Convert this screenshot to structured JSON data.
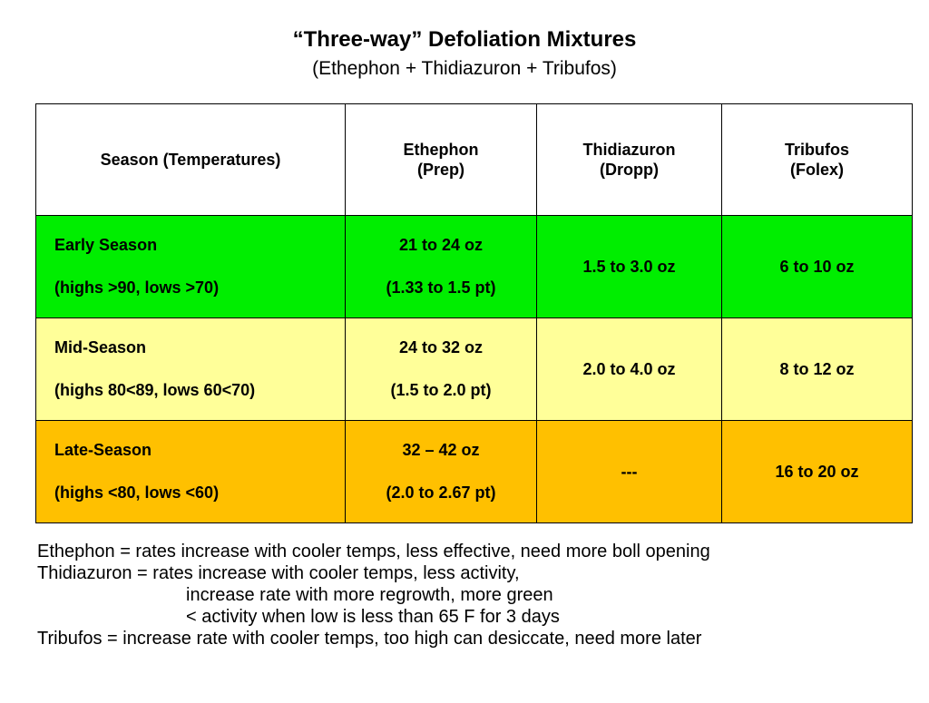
{
  "title": "“Three-way” Defoliation Mixtures",
  "subtitle": "(Ethephon + Thidiazuron + Tribufos)",
  "table": {
    "headers": [
      {
        "line1": "Season (Temperatures)",
        "line2": ""
      },
      {
        "line1": "Ethephon",
        "line2": "(Prep)"
      },
      {
        "line1": "Thidiazuron",
        "line2": "(Dropp)"
      },
      {
        "line1": "Tribufos",
        "line2": "(Folex)"
      }
    ],
    "rows": [
      {
        "season": "Early Season",
        "temps": "(highs  >90, lows >70)",
        "ethephon_oz": "21 to 24 oz",
        "ethephon_pt": "(1.33 to 1.5 pt)",
        "thidiazuron": "1.5 to 3.0 oz",
        "tribufos": "6 to 10 oz",
        "color": "#00ee00"
      },
      {
        "season": "Mid-Season",
        "temps": "(highs  80<89, lows 60<70)",
        "ethephon_oz": "24 to 32 oz",
        "ethephon_pt": "(1.5 to 2.0 pt)",
        "thidiazuron": "2.0 to 4.0 oz",
        "tribufos": "8 to 12 oz",
        "color": "#ffff99"
      },
      {
        "season": "Late-Season",
        "temps": "(highs <80, lows <60)",
        "ethephon_oz": "32 – 42 oz",
        "ethephon_pt": "(2.0 to 2.67 pt)",
        "thidiazuron": "---",
        "tribufos": "16 to 20 oz",
        "color": "#ffc000"
      }
    ]
  },
  "notes": {
    "ethephon": "Ethephon = rates increase with cooler temps, less effective, need more boll opening",
    "thidiazuron": "Thidiazuron = rates increase with cooler temps, less activity,",
    "thidiazuron_2": "increase rate with more regrowth, more green",
    "thidiazuron_3": "< activity when low is less than 65 F for 3 days",
    "tribufos": "Tribufos = increase rate with cooler temps, too high can desiccate, need more later"
  }
}
